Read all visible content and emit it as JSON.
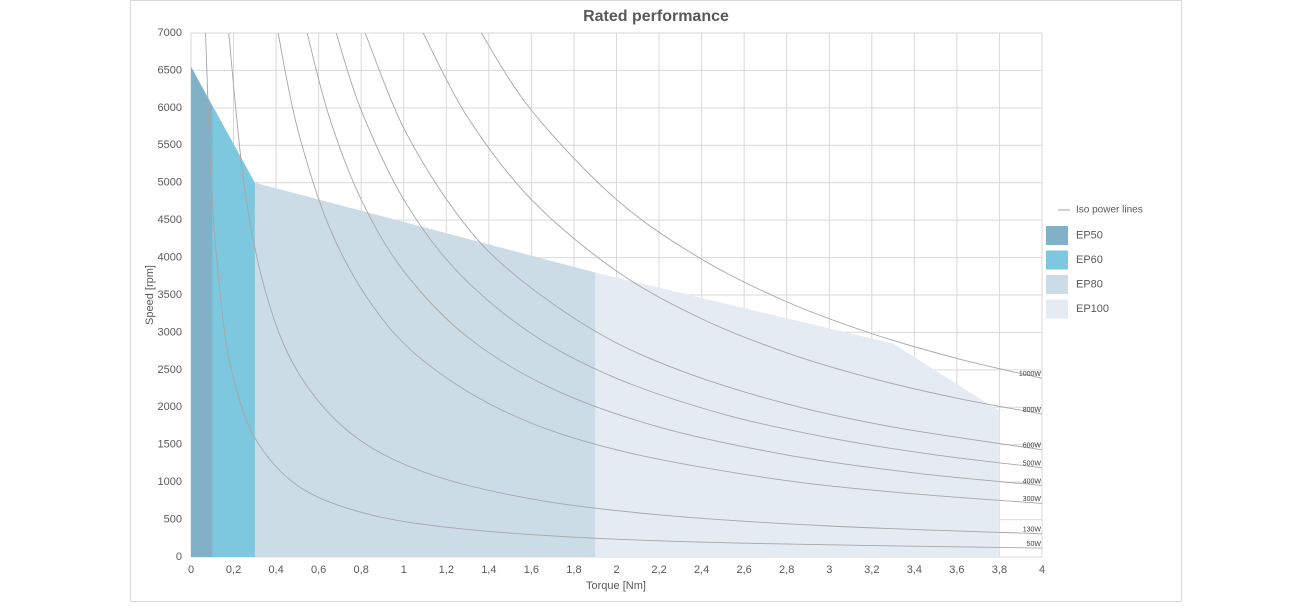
{
  "chart_data": {
    "type": "area",
    "title": "Rated performance",
    "x_label": "Torque [Nm]",
    "y_label": "Speed [rpm]",
    "xlim": [
      0,
      4
    ],
    "ylim": [
      0,
      7000
    ],
    "xticks": [
      0,
      {
        "value": 0.2,
        "label": "0,2"
      },
      {
        "value": 0.4,
        "label": "0,4"
      },
      {
        "value": 0.6,
        "label": "0,6"
      },
      {
        "value": 0.8,
        "label": "0,8"
      },
      1,
      {
        "value": 1.2,
        "label": "1,2"
      },
      {
        "value": 1.4,
        "label": "1,4"
      },
      {
        "value": 1.6,
        "label": "1,6"
      },
      {
        "value": 1.8,
        "label": "1,8"
      },
      2,
      {
        "value": 2.2,
        "label": "2,2"
      },
      {
        "value": 2.4,
        "label": "2,4"
      },
      {
        "value": 2.6,
        "label": "2,6"
      },
      {
        "value": 2.8,
        "label": "2,8"
      },
      3,
      {
        "value": 3.2,
        "label": "3,2"
      },
      {
        "value": 3.4,
        "label": "3,4"
      },
      {
        "value": 3.6,
        "label": "3,6"
      },
      {
        "value": 3.8,
        "label": "3,8"
      },
      4
    ],
    "yticks": [
      0,
      500,
      1000,
      1500,
      2000,
      2500,
      3000,
      3500,
      4000,
      4500,
      5000,
      5500,
      6000,
      6500,
      7000
    ],
    "grid": true,
    "legend": "right",
    "series": [
      {
        "name": "EP50",
        "color": "#80b1c6",
        "x": [
          0,
          0.1
        ],
        "values": [
          6550,
          6000
        ]
      },
      {
        "name": "EP60",
        "color": "#7dc7df",
        "x": [
          0,
          0.3
        ],
        "values": [
          6550,
          5000
        ]
      },
      {
        "name": "EP80",
        "color": "#ccdce7",
        "x": [
          0,
          0.3,
          1.9
        ],
        "values": [
          6550,
          5000,
          3800
        ]
      },
      {
        "name": "EP100",
        "color": "#e4ebf2",
        "x": [
          0,
          0.3,
          1.9,
          3.3,
          3.8
        ],
        "values": [
          6550,
          5000,
          3800,
          2850,
          1950
        ]
      }
    ],
    "iso_power_lines": {
      "name": "Iso power lines",
      "color": "#a6a6a6",
      "lines": [
        {
          "label": "1000W",
          "x": [
            1.3642,
            1.6,
            2,
            2.4,
            2.8,
            3.2,
            3.6,
            4
          ],
          "values": [
            7000,
            5968,
            4775,
            3979,
            3410,
            2984,
            2653,
            2387
          ]
        },
        {
          "label": "800W",
          "x": [
            1.0913,
            1.3,
            1.6,
            2,
            2.4,
            2.8,
            3.2,
            3.6,
            4
          ],
          "values": [
            7000,
            5876,
            4775,
            3820,
            3183,
            2728,
            2387,
            2122,
            1910
          ]
        },
        {
          "label": "600W",
          "x": [
            0.8185,
            1,
            1.25,
            1.5,
            1.9,
            2.3,
            2.8,
            3.3,
            4
          ],
          "values": [
            7000,
            5730,
            4584,
            3820,
            3016,
            2491,
            2046,
            1736,
            1432
          ]
        },
        {
          "label": "500W",
          "x": [
            0.6821,
            0.8,
            1,
            1.25,
            1.6,
            2,
            2.5,
            3,
            3.5,
            4
          ],
          "values": [
            7000,
            5968,
            4775,
            3820,
            2984,
            2387,
            1910,
            1592,
            1364,
            1194
          ]
        },
        {
          "label": "400W",
          "x": [
            0.5457,
            0.65,
            0.8,
            1,
            1.3,
            1.7,
            2.2,
            2.8,
            3.4,
            4
          ],
          "values": [
            7000,
            5877,
            4775,
            3820,
            2938,
            2247,
            1736,
            1364,
            1123,
            955
          ]
        },
        {
          "label": "300W",
          "x": [
            0.4093,
            0.5,
            0.65,
            0.85,
            1.1,
            1.5,
            2,
            2.7,
            3.3,
            4
          ],
          "values": [
            7000,
            5730,
            4407,
            3370,
            2604,
            1910,
            1432,
            1061,
            868,
            716
          ]
        },
        {
          "label": "130W",
          "x": [
            0.1773,
            0.25,
            0.35,
            0.5,
            0.75,
            1.1,
            1.6,
            2.2,
            3,
            4
          ],
          "values": [
            7000,
            4966,
            3547,
            2483,
            1655,
            1129,
            776,
            564,
            414,
            310
          ]
        },
        {
          "label": "50W",
          "x": [
            0.0682,
            0.1,
            0.15,
            0.2,
            0.3,
            0.5,
            0.8,
            1.2,
            1.8,
            2.6,
            4
          ],
          "values": [
            7000,
            4775,
            3183,
            2387,
            1592,
            955,
            597,
            398,
            265,
            184,
            119
          ]
        }
      ]
    }
  }
}
